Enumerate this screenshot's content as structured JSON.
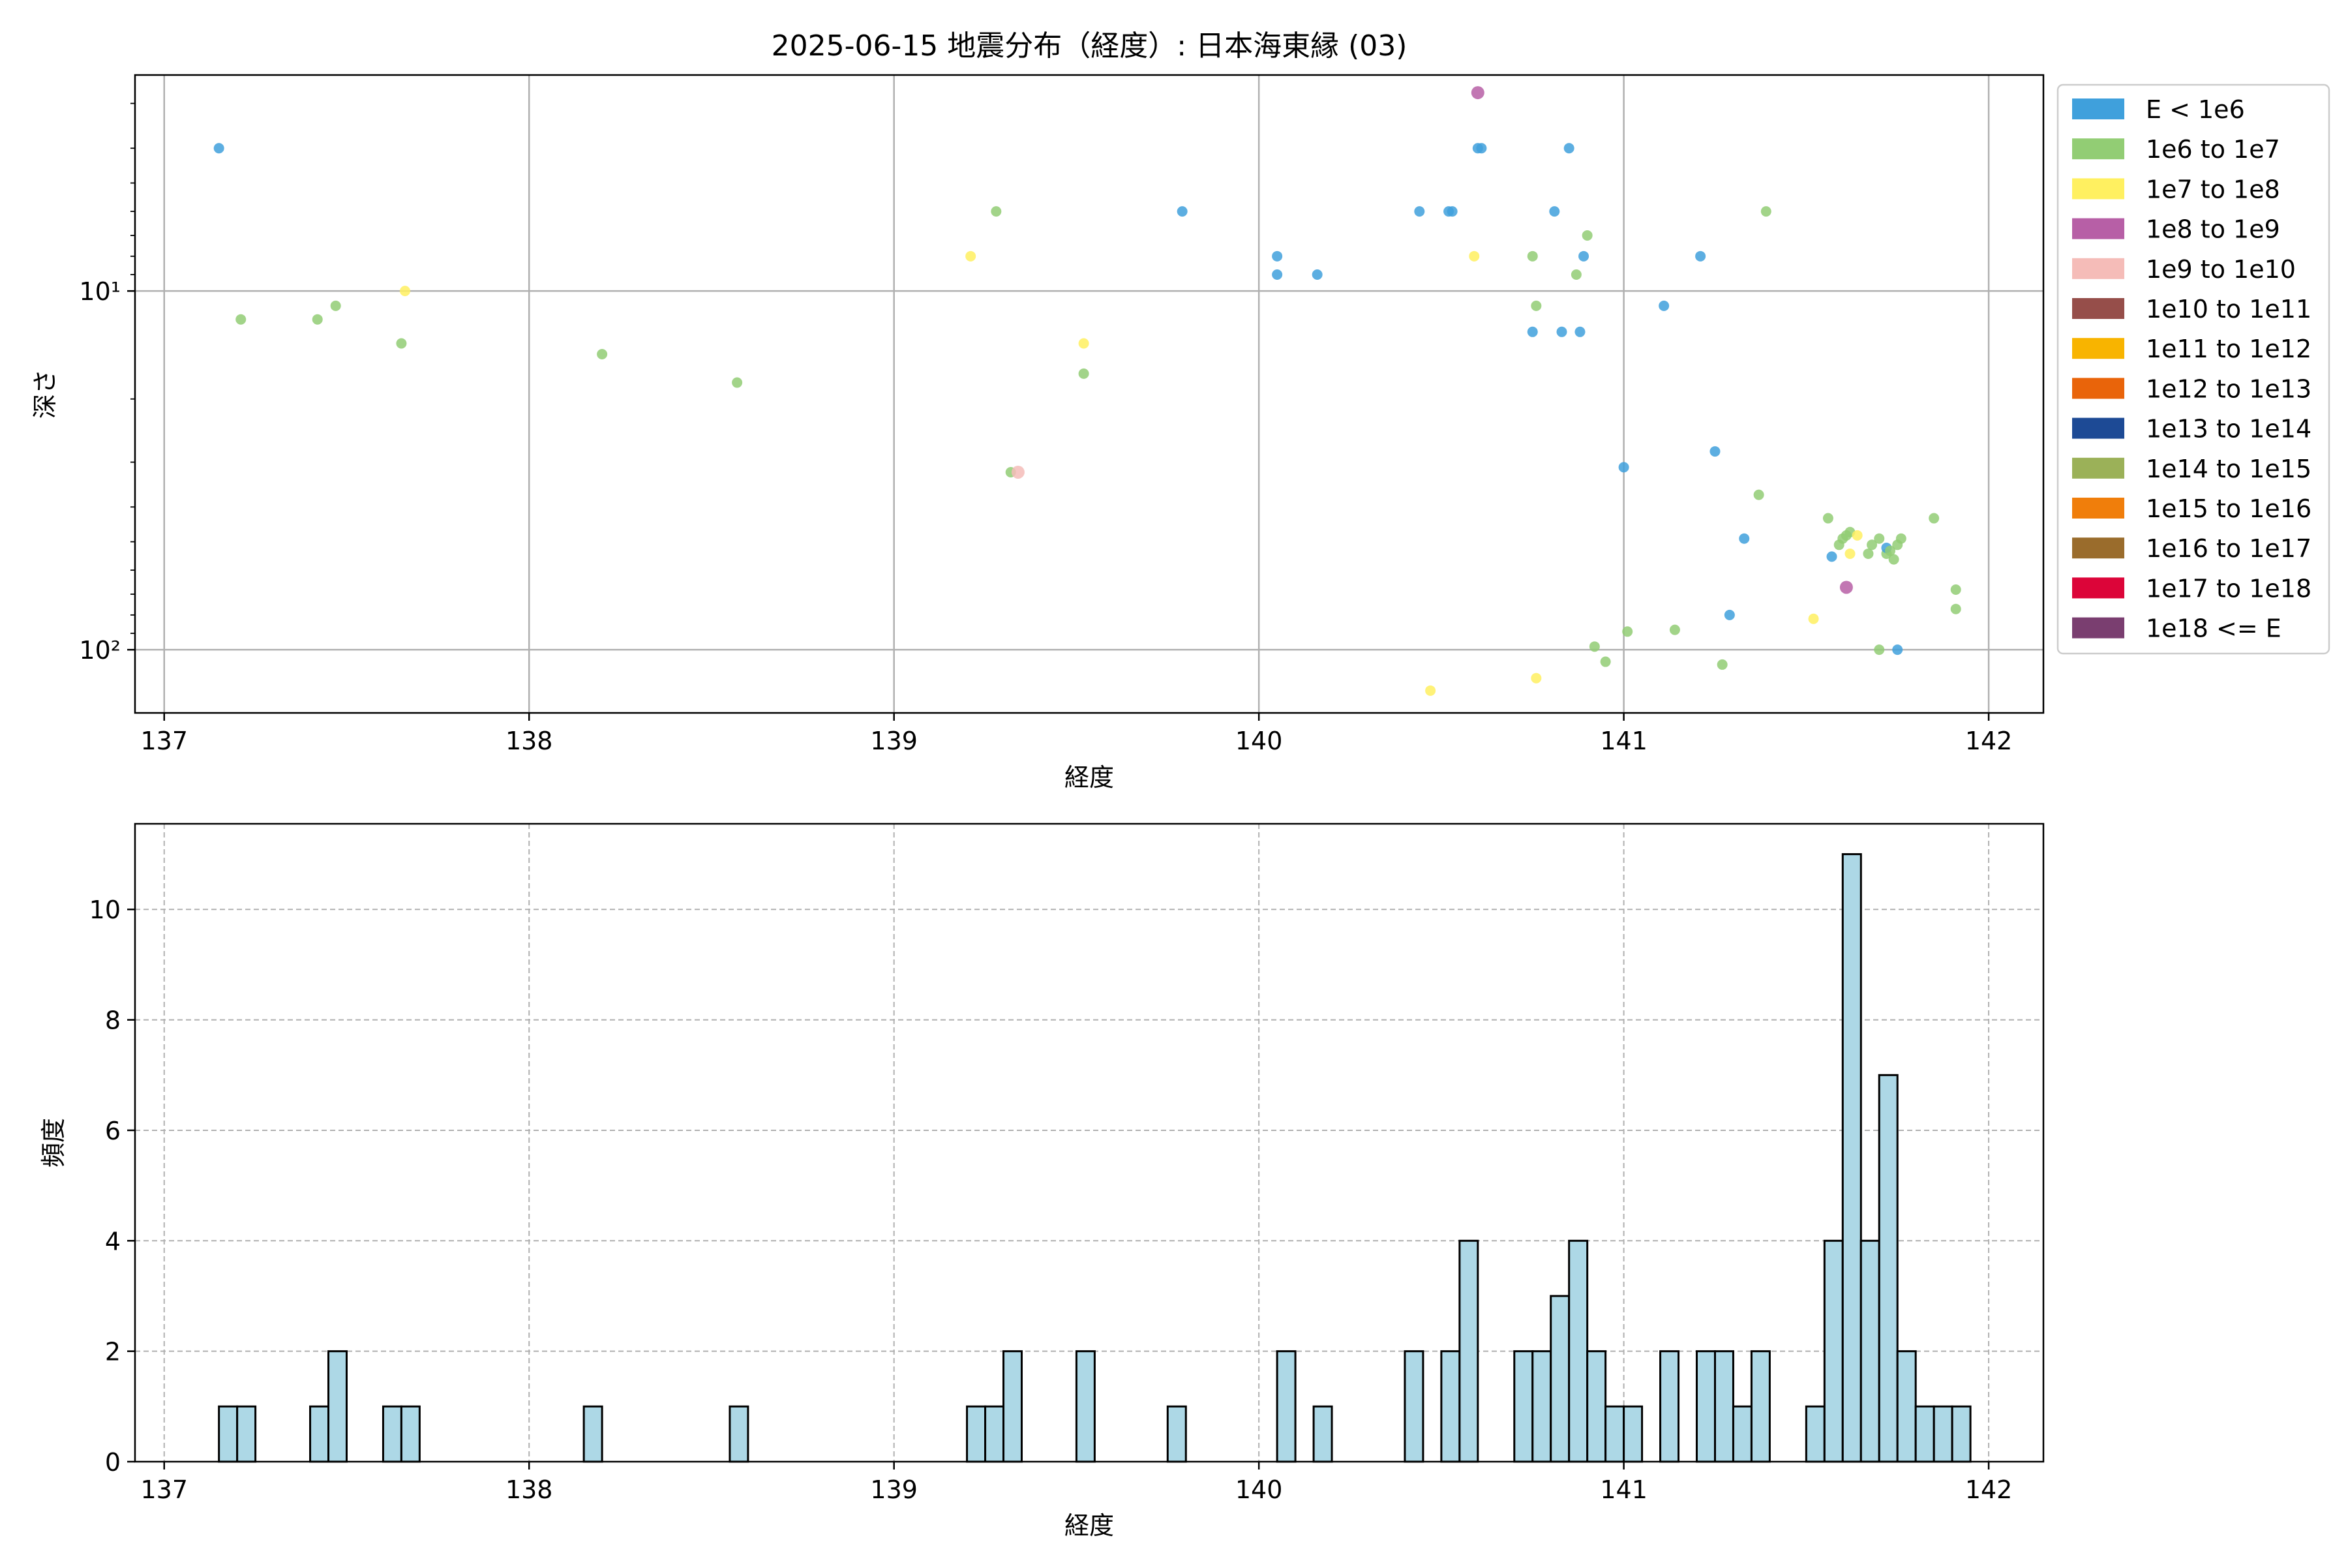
{
  "figure": {
    "title": "2025-06-15 地震分布（経度）: 日本海東縁 (03)"
  },
  "colors": {
    "grid": "#b0b0b0",
    "hist_fill": "#add8e6",
    "hist_edge": "#000000"
  },
  "chart_data": [
    {
      "type": "scatter",
      "title": "2025-06-15 地震分布（経度）: 日本海東縁 (03)",
      "xlabel": "経度",
      "ylabel": "深さ",
      "xlim": [
        136.92,
        142.15
      ],
      "ylim": [
        150,
        2.5
      ],
      "yscale": "log",
      "y_inverted": true,
      "grid": true,
      "legend_position": "outside right, top",
      "x_ticks": [
        137,
        138,
        139,
        140,
        141,
        142
      ],
      "x_tick_labels": [
        "137",
        "138",
        "139",
        "140",
        "141",
        "142"
      ],
      "y_ticks": [
        10,
        100
      ],
      "y_tick_labels": [
        "10¹",
        "10²"
      ],
      "legend": [
        {
          "label": "E < 1e6",
          "color": "#3fa0dc"
        },
        {
          "label": "1e6 to 1e7",
          "color": "#92cd74"
        },
        {
          "label": "1e7 to 1e8",
          "color": "#fff060"
        },
        {
          "label": "1e8 to 1e9",
          "color": "#b75fa6"
        },
        {
          "label": "1e9 to 1e10",
          "color": "#f5bcb8"
        },
        {
          "label": "1e10 to 1e11",
          "color": "#964e4a"
        },
        {
          "label": "1e11 to 1e12",
          "color": "#f8b400"
        },
        {
          "label": "1e12 to 1e13",
          "color": "#e9640a"
        },
        {
          "label": "1e13 to 1e14",
          "color": "#1d4a95"
        },
        {
          "label": "1e14 to 1e15",
          "color": "#9bb158"
        },
        {
          "label": "1e15 to 1e16",
          "color": "#f07e0b"
        },
        {
          "label": "1e16 to 1e17",
          "color": "#9a6c2c"
        },
        {
          "label": "1e17 to 1e18",
          "color": "#dc0539"
        },
        {
          "label": "1e18 <= E",
          "color": "#7a3e70"
        }
      ],
      "points": [
        {
          "x": 137.15,
          "y": 4,
          "class": "E < 1e6"
        },
        {
          "x": 137.21,
          "y": 12,
          "class": "1e6 to 1e7"
        },
        {
          "x": 137.42,
          "y": 12,
          "class": "1e6 to 1e7"
        },
        {
          "x": 137.47,
          "y": 11,
          "class": "1e6 to 1e7"
        },
        {
          "x": 137.65,
          "y": 14,
          "class": "1e6 to 1e7"
        },
        {
          "x": 137.66,
          "y": 10,
          "class": "1e7 to 1e8"
        },
        {
          "x": 138.2,
          "y": 15,
          "class": "1e6 to 1e7"
        },
        {
          "x": 138.57,
          "y": 18,
          "class": "1e6 to 1e7"
        },
        {
          "x": 139.21,
          "y": 8,
          "class": "1e7 to 1e8"
        },
        {
          "x": 139.28,
          "y": 6,
          "class": "1e6 to 1e7"
        },
        {
          "x": 139.32,
          "y": 32,
          "class": "1e6 to 1e7"
        },
        {
          "x": 139.34,
          "y": 32,
          "class": "1e9 to 1e10"
        },
        {
          "x": 139.52,
          "y": 14,
          "class": "1e7 to 1e8"
        },
        {
          "x": 139.52,
          "y": 17,
          "class": "1e6 to 1e7"
        },
        {
          "x": 139.79,
          "y": 6,
          "class": "E < 1e6"
        },
        {
          "x": 140.05,
          "y": 8,
          "class": "E < 1e6"
        },
        {
          "x": 140.05,
          "y": 9,
          "class": "E < 1e6"
        },
        {
          "x": 140.16,
          "y": 9,
          "class": "E < 1e6"
        },
        {
          "x": 140.44,
          "y": 6,
          "class": "E < 1e6"
        },
        {
          "x": 140.47,
          "y": 130,
          "class": "1e7 to 1e8"
        },
        {
          "x": 140.52,
          "y": 6,
          "class": "E < 1e6"
        },
        {
          "x": 140.53,
          "y": 6,
          "class": "E < 1e6"
        },
        {
          "x": 140.59,
          "y": 8,
          "class": "1e7 to 1e8"
        },
        {
          "x": 140.6,
          "y": 2.8,
          "class": "1e8 to 1e9"
        },
        {
          "x": 140.6,
          "y": 4,
          "class": "E < 1e6"
        },
        {
          "x": 140.61,
          "y": 4,
          "class": "E < 1e6"
        },
        {
          "x": 140.75,
          "y": 8,
          "class": "1e6 to 1e7"
        },
        {
          "x": 140.75,
          "y": 13,
          "class": "E < 1e6"
        },
        {
          "x": 140.76,
          "y": 11,
          "class": "1e6 to 1e7"
        },
        {
          "x": 140.76,
          "y": 120,
          "class": "1e7 to 1e8"
        },
        {
          "x": 140.81,
          "y": 6,
          "class": "E < 1e6"
        },
        {
          "x": 140.83,
          "y": 13,
          "class": "E < 1e6"
        },
        {
          "x": 140.85,
          "y": 4,
          "class": "E < 1e6"
        },
        {
          "x": 140.87,
          "y": 9,
          "class": "1e6 to 1e7"
        },
        {
          "x": 140.88,
          "y": 13,
          "class": "E < 1e6"
        },
        {
          "x": 140.89,
          "y": 8,
          "class": "E < 1e6"
        },
        {
          "x": 140.9,
          "y": 7,
          "class": "1e6 to 1e7"
        },
        {
          "x": 140.92,
          "y": 98,
          "class": "1e6 to 1e7"
        },
        {
          "x": 140.95,
          "y": 108,
          "class": "1e6 to 1e7"
        },
        {
          "x": 141.0,
          "y": 31,
          "class": "E < 1e6"
        },
        {
          "x": 141.01,
          "y": 89,
          "class": "1e6 to 1e7"
        },
        {
          "x": 141.11,
          "y": 11,
          "class": "E < 1e6"
        },
        {
          "x": 141.14,
          "y": 88,
          "class": "1e6 to 1e7"
        },
        {
          "x": 141.21,
          "y": 8,
          "class": "E < 1e6"
        },
        {
          "x": 141.25,
          "y": 28,
          "class": "E < 1e6"
        },
        {
          "x": 141.27,
          "y": 110,
          "class": "1e6 to 1e7"
        },
        {
          "x": 141.29,
          "y": 80,
          "class": "E < 1e6"
        },
        {
          "x": 141.33,
          "y": 49,
          "class": "E < 1e6"
        },
        {
          "x": 141.37,
          "y": 37,
          "class": "1e6 to 1e7"
        },
        {
          "x": 141.39,
          "y": 6,
          "class": "1e6 to 1e7"
        },
        {
          "x": 141.52,
          "y": 82,
          "class": "1e7 to 1e8"
        },
        {
          "x": 141.56,
          "y": 43,
          "class": "1e6 to 1e7"
        },
        {
          "x": 141.57,
          "y": 55,
          "class": "E < 1e6"
        },
        {
          "x": 141.59,
          "y": 51,
          "class": "1e6 to 1e7"
        },
        {
          "x": 141.6,
          "y": 49,
          "class": "1e6 to 1e7"
        },
        {
          "x": 141.61,
          "y": 48,
          "class": "1e6 to 1e7"
        },
        {
          "x": 141.62,
          "y": 47,
          "class": "1e6 to 1e7"
        },
        {
          "x": 141.61,
          "y": 67,
          "class": "1e8 to 1e9"
        },
        {
          "x": 141.62,
          "y": 54,
          "class": "1e7 to 1e8"
        },
        {
          "x": 141.64,
          "y": 48,
          "class": "1e7 to 1e8"
        },
        {
          "x": 141.67,
          "y": 54,
          "class": "1e6 to 1e7"
        },
        {
          "x": 141.68,
          "y": 51,
          "class": "1e6 to 1e7"
        },
        {
          "x": 141.7,
          "y": 49,
          "class": "1e6 to 1e7"
        },
        {
          "x": 141.72,
          "y": 54,
          "class": "1e6 to 1e7"
        },
        {
          "x": 141.72,
          "y": 52,
          "class": "E < 1e6"
        },
        {
          "x": 141.73,
          "y": 53,
          "class": "1e6 to 1e7"
        },
        {
          "x": 141.74,
          "y": 56,
          "class": "1e6 to 1e7"
        },
        {
          "x": 141.75,
          "y": 51,
          "class": "1e6 to 1e7"
        },
        {
          "x": 141.76,
          "y": 49,
          "class": "1e6 to 1e7"
        },
        {
          "x": 141.7,
          "y": 100,
          "class": "1e6 to 1e7"
        },
        {
          "x": 141.75,
          "y": 100,
          "class": "E < 1e6"
        },
        {
          "x": 141.85,
          "y": 43,
          "class": "1e6 to 1e7"
        },
        {
          "x": 141.91,
          "y": 68,
          "class": "1e6 to 1e7"
        },
        {
          "x": 141.91,
          "y": 77,
          "class": "1e6 to 1e7"
        }
      ]
    },
    {
      "type": "bar",
      "subtype": "histogram",
      "xlabel": "経度",
      "ylabel": "頻度",
      "xlim": [
        136.92,
        142.15
      ],
      "ylim": [
        0,
        11.55
      ],
      "grid": true,
      "grid_style": "dashed",
      "x_ticks": [
        137,
        138,
        139,
        140,
        141,
        142
      ],
      "x_tick_labels": [
        "137",
        "138",
        "139",
        "140",
        "141",
        "142"
      ],
      "y_ticks": [
        0,
        2,
        4,
        6,
        8,
        10
      ],
      "y_tick_labels": [
        "0",
        "2",
        "4",
        "6",
        "8",
        "10"
      ],
      "bin_width": 0.05,
      "bins": [
        {
          "x0": 137.15,
          "count": 1
        },
        {
          "x0": 137.2,
          "count": 1
        },
        {
          "x0": 137.4,
          "count": 1
        },
        {
          "x0": 137.45,
          "count": 2
        },
        {
          "x0": 137.6,
          "count": 1
        },
        {
          "x0": 137.65,
          "count": 1
        },
        {
          "x0": 138.15,
          "count": 1
        },
        {
          "x0": 138.55,
          "count": 1
        },
        {
          "x0": 139.2,
          "count": 1
        },
        {
          "x0": 139.25,
          "count": 1
        },
        {
          "x0": 139.3,
          "count": 2
        },
        {
          "x0": 139.5,
          "count": 2
        },
        {
          "x0": 139.75,
          "count": 1
        },
        {
          "x0": 140.05,
          "count": 2
        },
        {
          "x0": 140.15,
          "count": 1
        },
        {
          "x0": 140.4,
          "count": 2
        },
        {
          "x0": 140.5,
          "count": 2
        },
        {
          "x0": 140.55,
          "count": 4
        },
        {
          "x0": 140.7,
          "count": 2
        },
        {
          "x0": 140.75,
          "count": 2
        },
        {
          "x0": 140.8,
          "count": 3
        },
        {
          "x0": 140.85,
          "count": 4
        },
        {
          "x0": 140.9,
          "count": 2
        },
        {
          "x0": 140.95,
          "count": 1
        },
        {
          "x0": 141.0,
          "count": 1
        },
        {
          "x0": 141.1,
          "count": 2
        },
        {
          "x0": 141.2,
          "count": 2
        },
        {
          "x0": 141.25,
          "count": 2
        },
        {
          "x0": 141.3,
          "count": 1
        },
        {
          "x0": 141.35,
          "count": 2
        },
        {
          "x0": 141.5,
          "count": 1
        },
        {
          "x0": 141.55,
          "count": 4
        },
        {
          "x0": 141.6,
          "count": 11
        },
        {
          "x0": 141.65,
          "count": 4
        },
        {
          "x0": 141.7,
          "count": 7
        },
        {
          "x0": 141.75,
          "count": 2
        },
        {
          "x0": 141.8,
          "count": 1
        },
        {
          "x0": 141.85,
          "count": 1
        },
        {
          "x0": 141.9,
          "count": 1
        }
      ]
    }
  ]
}
